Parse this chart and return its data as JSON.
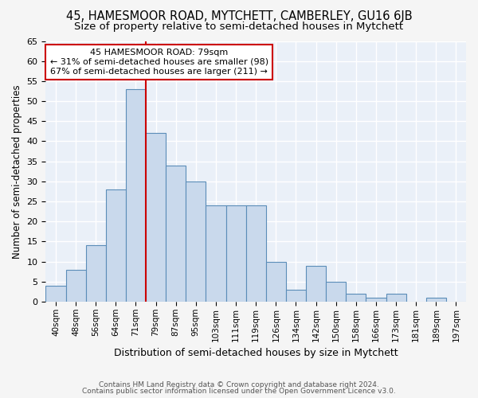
{
  "title": "45, HAMESMOOR ROAD, MYTCHETT, CAMBERLEY, GU16 6JB",
  "subtitle": "Size of property relative to semi-detached houses in Mytchett",
  "xlabel": "Distribution of semi-detached houses by size in Mytchett",
  "ylabel": "Number of semi-detached properties",
  "categories": [
    "40sqm",
    "48sqm",
    "56sqm",
    "64sqm",
    "71sqm",
    "79sqm",
    "87sqm",
    "95sqm",
    "103sqm",
    "111sqm",
    "119sqm",
    "126sqm",
    "134sqm",
    "142sqm",
    "150sqm",
    "158sqm",
    "166sqm",
    "173sqm",
    "181sqm",
    "189sqm",
    "197sqm"
  ],
  "values": [
    4,
    8,
    14,
    28,
    53,
    42,
    34,
    30,
    24,
    24,
    24,
    10,
    3,
    9,
    5,
    2,
    1,
    2,
    0,
    1,
    0
  ],
  "bar_color": "#c9d9ec",
  "bar_edge_color": "#5b8db8",
  "annotation_line1": "45 HAMESMOOR ROAD: 79sqm",
  "annotation_line2": "← 31% of semi-detached houses are smaller (98)",
  "annotation_line3": "67% of semi-detached houses are larger (211) →",
  "annotation_box_color": "#ffffff",
  "annotation_box_edge_color": "#cc0000",
  "vline_color": "#cc0000",
  "vline_x": 4.5,
  "ylim": [
    0,
    65
  ],
  "yticks": [
    0,
    5,
    10,
    15,
    20,
    25,
    30,
    35,
    40,
    45,
    50,
    55,
    60,
    65
  ],
  "footer1": "Contains HM Land Registry data © Crown copyright and database right 2024.",
  "footer2": "Contains public sector information licensed under the Open Government Licence v3.0.",
  "bg_color": "#eaf0f8",
  "grid_color": "#ffffff",
  "title_fontsize": 10.5,
  "subtitle_fontsize": 9.5
}
